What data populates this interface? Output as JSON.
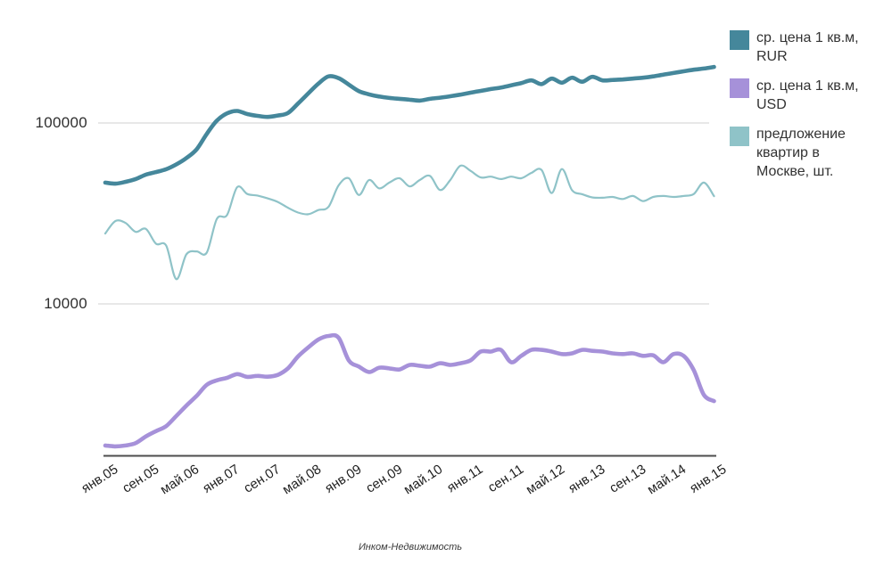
{
  "caption": "Инком-Недвижимость",
  "legend": {
    "items": [
      {
        "id": "rur",
        "label": "ср. цена 1 кв.м,\nRUR",
        "color": "#45879B"
      },
      {
        "id": "usd",
        "label": "ср. цена 1 кв.м,\nUSD",
        "color": "#A691D9"
      },
      {
        "id": "supply",
        "label": "предложение\nквартир в\nМоскве, шт.",
        "color": "#8FC3C8"
      }
    ]
  },
  "chart_data": {
    "type": "line",
    "title": "",
    "x_axis": {
      "tick_labels": [
        "янв.05",
        "сен.05",
        "май.06",
        "янв.07",
        "сен.07",
        "май.08",
        "янв.09",
        "сен.09",
        "май.10",
        "янв.11",
        "сен.11",
        "май.12",
        "янв.13",
        "сен.13",
        "май.14",
        "янв.15"
      ],
      "tick_step_months": 8,
      "total_months": 120
    },
    "y_axis": {
      "scale": "log",
      "tick_labels": [
        "100000",
        "10000"
      ],
      "tick_values": [
        100000,
        10000
      ],
      "grid": "horizontal"
    },
    "sample_step_months": 2,
    "series": [
      {
        "name": "ср. цена 1 кв.м, RUR",
        "color": "#45879B",
        "values": [
          46800,
          46200,
          47300,
          49000,
          51800,
          53500,
          55500,
          59000,
          64000,
          71500,
          87000,
          103000,
          113000,
          116500,
          112000,
          109500,
          108000,
          110000,
          113500,
          128000,
          145500,
          165000,
          181000,
          177000,
          163000,
          150000,
          144000,
          140000,
          137500,
          136000,
          134500,
          133000,
          136000,
          138000,
          140500,
          143500,
          147000,
          150500,
          154000,
          157000,
          161500,
          166000,
          172000,
          164000,
          176000,
          167000,
          178000,
          169000,
          180000,
          172000,
          173000,
          174000,
          176000,
          178000,
          181000,
          185000,
          189000,
          193000,
          197000,
          200000,
          204000
        ]
      },
      {
        "name": "ср. цена 1 кв.м, USD",
        "color": "#A691D9",
        "values": [
          1650,
          1630,
          1650,
          1700,
          1850,
          1980,
          2110,
          2400,
          2740,
          3100,
          3570,
          3780,
          3900,
          4090,
          3950,
          4000,
          3960,
          4050,
          4400,
          5120,
          5740,
          6350,
          6650,
          6500,
          4870,
          4500,
          4200,
          4440,
          4400,
          4340,
          4600,
          4550,
          4500,
          4700,
          4600,
          4700,
          4870,
          5450,
          5450,
          5570,
          4760,
          5160,
          5570,
          5570,
          5450,
          5280,
          5330,
          5570,
          5500,
          5450,
          5330,
          5280,
          5330,
          5160,
          5200,
          4760,
          5280,
          5160,
          4300,
          3140,
          2900
        ]
      },
      {
        "name": "предложение квартир в Москве, шт.",
        "color": "#8FC3C8",
        "values": [
          24500,
          28700,
          28000,
          25000,
          26000,
          21500,
          21000,
          13700,
          18800,
          19500,
          19200,
          29500,
          31000,
          44200,
          40500,
          39700,
          38300,
          36600,
          34000,
          32000,
          31300,
          33000,
          34400,
          45200,
          49500,
          40000,
          48400,
          43500,
          46800,
          49500,
          44600,
          48400,
          51000,
          42600,
          48400,
          58000,
          54400,
          50000,
          50500,
          49000,
          50500,
          49500,
          53000,
          55000,
          41000,
          55600,
          42500,
          40400,
          38800,
          38600,
          39000,
          38000,
          39500,
          37000,
          39000,
          39500,
          39000,
          39500,
          40500,
          46800,
          39400
        ]
      }
    ]
  }
}
